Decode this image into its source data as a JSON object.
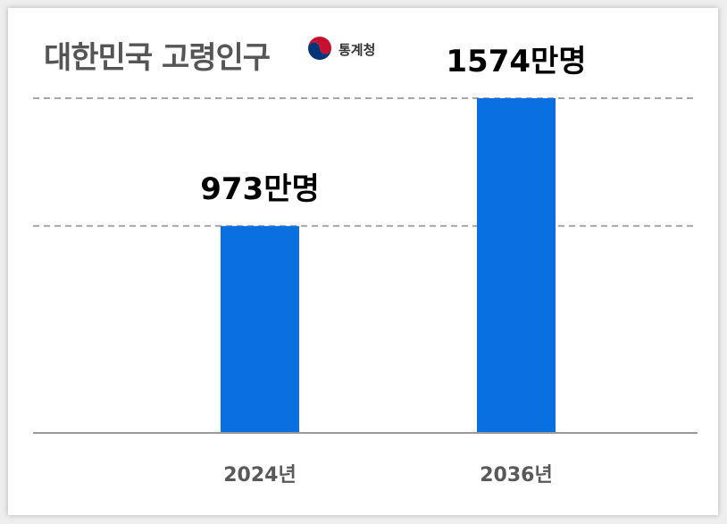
{
  "source": {
    "name": "통계청",
    "logo_icon": "taegeuk-logo-icon",
    "colors": {
      "red": "#c8102e",
      "blue": "#003478"
    }
  },
  "chart_data": {
    "type": "bar",
    "title": "대한민국 고령인구",
    "categories": [
      "2024년",
      "2036년"
    ],
    "values": [
      973,
      1574
    ],
    "data_labels": [
      "973만명",
      "1574만명"
    ],
    "unit": "만명",
    "xlabel": "",
    "ylabel": "",
    "ylim": [
      0,
      1574
    ],
    "reference_lines": [
      973,
      1574
    ],
    "grid": false,
    "legend": "none",
    "bar_color": "#0a6fe0",
    "axis_color": "#999999",
    "reference_line_color": "#a6a6a6"
  }
}
